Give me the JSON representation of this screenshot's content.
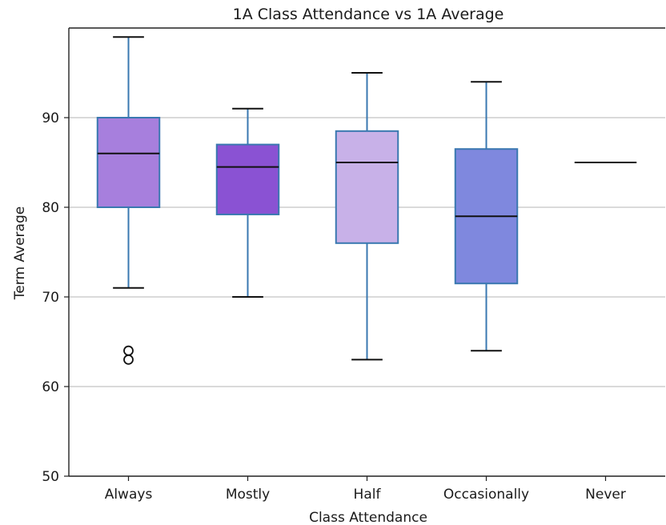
{
  "chart_data": {
    "type": "box",
    "title": "1A Class Attendance vs 1A Average",
    "xlabel": "Class Attendance",
    "ylabel": "Term Average",
    "ylim": [
      50,
      100
    ],
    "yticks": [
      50,
      60,
      70,
      80,
      90
    ],
    "grid": "horizontal",
    "categories": [
      "Always",
      "Mostly",
      "Half",
      "Occasionally",
      "Never"
    ],
    "boxes": [
      {
        "category": "Always",
        "whisker_low": 71,
        "q1": 80,
        "median": 86,
        "q3": 90,
        "whisker_high": 99,
        "outliers": [
          63,
          64
        ],
        "color": "#a77fdd"
      },
      {
        "category": "Mostly",
        "whisker_low": 70,
        "q1": 79.2,
        "median": 84.5,
        "q3": 87,
        "whisker_high": 91,
        "outliers": [],
        "color": "#8a52d3"
      },
      {
        "category": "Half",
        "whisker_low": 63,
        "q1": 76,
        "median": 85,
        "q3": 88.5,
        "whisker_high": 95,
        "outliers": [],
        "color": "#c8b1e8"
      },
      {
        "category": "Occasionally",
        "whisker_low": 64,
        "q1": 71.5,
        "median": 79,
        "q3": 86.5,
        "whisker_high": 94,
        "outliers": [],
        "color": "#7f88de"
      },
      {
        "category": "Never",
        "whisker_low": 85,
        "q1": 85,
        "median": 85,
        "q3": 85,
        "whisker_high": 85,
        "outliers": [],
        "color": "#9ba3e6"
      }
    ],
    "colors": {
      "box_edge": "#3a78b0",
      "median": "#111111",
      "grid": "#c4c4c4",
      "axis": "#222222"
    }
  }
}
